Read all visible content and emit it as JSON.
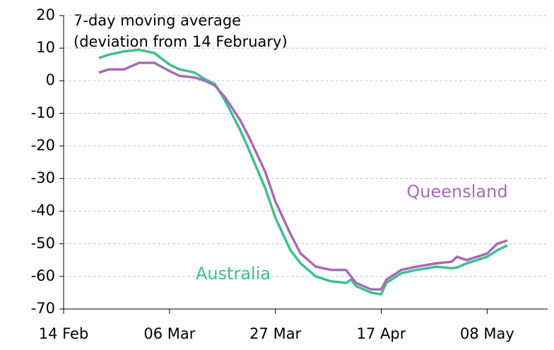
{
  "chart_data": {
    "type": "line",
    "annotations": [
      "7-day moving average",
      "(deviation from 14 February)"
    ],
    "x": [
      "21 Feb",
      "23 Feb",
      "26 Feb",
      "29 Feb",
      "3 Mar",
      "6 Mar",
      "8 Mar",
      "11 Mar",
      "13 Mar",
      "15 Mar",
      "17 Mar",
      "20 Mar",
      "22 Mar",
      "25 Mar",
      "27 Mar",
      "30 Mar",
      "1 Apr",
      "4 Apr",
      "7 Apr",
      "10 Apr",
      "11 Apr",
      "12 Apr",
      "15 Apr",
      "17 Apr",
      "18 Apr",
      "21 Apr",
      "24 Apr",
      "28 Apr",
      "1 May",
      "2 May",
      "4 May",
      "8 May",
      "10 May",
      "12 May"
    ],
    "series": [
      {
        "name": "Australia",
        "color": "#3dbf8f",
        "values": [
          7,
          8,
          9,
          9.5,
          8.5,
          5,
          3.5,
          2.5,
          0.5,
          -1,
          -6,
          -15,
          -22,
          -33,
          -42,
          -52,
          -56,
          -60,
          -61.5,
          -62,
          -61,
          -63,
          -65,
          -65.5,
          -62,
          -59,
          -58,
          -57,
          -57.5,
          -57.3,
          -56,
          -54,
          -52,
          -50.5
        ]
      },
      {
        "name": "Queensland",
        "color": "#a66bb5",
        "values": [
          2.5,
          3.5,
          3.5,
          5.5,
          5.5,
          3,
          1.5,
          1,
          0,
          -1.5,
          -5,
          -12,
          -18,
          -28,
          -37,
          -47,
          -53,
          -57,
          -58,
          -58,
          -60,
          -62,
          -64,
          -64,
          -61,
          -58,
          -57,
          -56,
          -55.5,
          -54,
          -55,
          -53,
          -50,
          -49
        ]
      }
    ],
    "xlim": [
      "14 Feb",
      "20 May"
    ],
    "xticks": [
      "14 Feb",
      "06 Mar",
      "27 Mar",
      "17 Apr",
      "08 May"
    ],
    "ylim": [
      -70,
      20
    ],
    "yticks": [
      -70,
      -60,
      -50,
      -40,
      -30,
      -20,
      -10,
      0,
      10,
      20
    ],
    "grid": true
  }
}
